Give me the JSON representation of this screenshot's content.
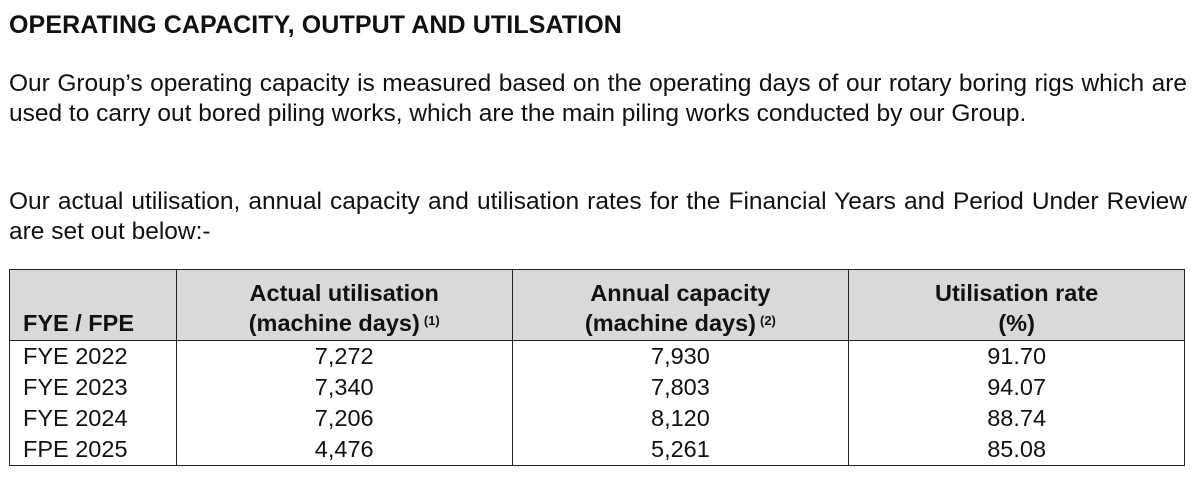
{
  "heading": "OPERATING CAPACITY, OUTPUT AND UTILSATION",
  "paragraphs": [
    "Our Group’s operating capacity is measured based on the operating days of our rotary boring rigs which are used to carry out bored piling works, which are the main piling works conducted by our Group.",
    "Our actual utilisation, annual capacity and utilisation rates for the Financial Years and Period Under Review are set out below:-"
  ],
  "table": {
    "headers": {
      "period": "FYE / FPE",
      "actual_line1": "Actual utilisation",
      "actual_line2": "(machine days)",
      "actual_note": "(1)",
      "capacity_line1": "Annual capacity",
      "capacity_line2": "(machine days)",
      "capacity_note": "(2)",
      "rate_line1": "Utilisation rate",
      "rate_line2": "(%)"
    },
    "rows": [
      {
        "period": "FYE 2022",
        "actual": "7,272",
        "capacity": "7,930",
        "rate": "91.70"
      },
      {
        "period": "FYE 2023",
        "actual": "7,340",
        "capacity": "7,803",
        "rate": "94.07"
      },
      {
        "period": "FYE 2024",
        "actual": "7,206",
        "capacity": "8,120",
        "rate": "88.74"
      },
      {
        "period": "FPE 2025",
        "actual": "4,476",
        "capacity": "5,261",
        "rate": "85.08"
      }
    ]
  }
}
